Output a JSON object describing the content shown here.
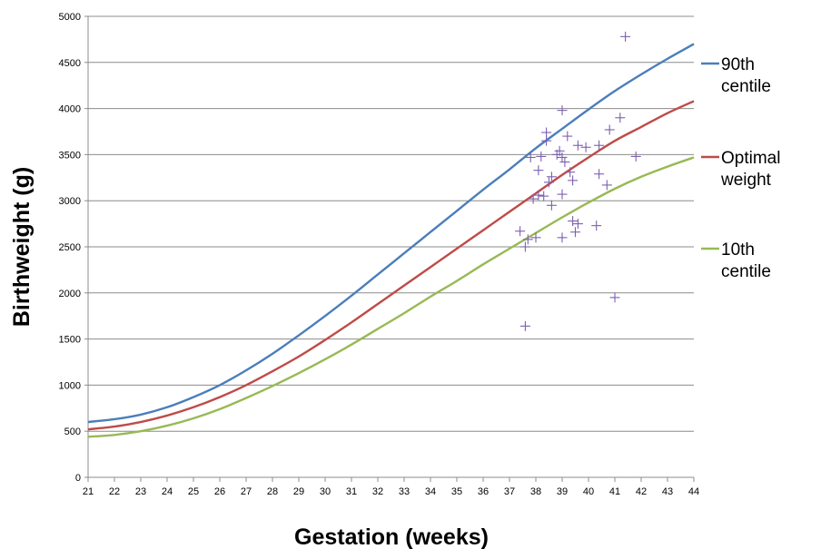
{
  "chart_data": {
    "type": "line",
    "title": "",
    "xlabel": "Gestation (weeks)",
    "ylabel": "Birthweight (g)",
    "xlim": [
      21,
      44
    ],
    "ylim": [
      0,
      5000
    ],
    "x_ticks": [
      "21",
      "22",
      "23",
      "24",
      "25",
      "26",
      "27",
      "28",
      "29",
      "30",
      "31",
      "32",
      "33",
      "34",
      "35",
      "36",
      "37",
      "38",
      "39",
      "40",
      "41",
      "42",
      "43",
      "44"
    ],
    "y_ticks": [
      "0",
      "500",
      "1000",
      "1500",
      "2000",
      "2500",
      "3000",
      "3500",
      "4000",
      "4500",
      "5000"
    ],
    "grid": "horizontal",
    "legend_position": "right",
    "series": [
      {
        "name": "90th centile",
        "color": "#4a7ebb",
        "x": [
          21,
          22,
          23,
          24,
          25,
          26,
          27,
          28,
          29,
          30,
          31,
          32,
          33,
          34,
          35,
          36,
          37,
          38,
          39,
          40,
          41,
          42,
          43,
          44
        ],
        "y": [
          600,
          630,
          680,
          760,
          870,
          1000,
          1160,
          1340,
          1540,
          1750,
          1970,
          2200,
          2430,
          2660,
          2890,
          3120,
          3340,
          3570,
          3780,
          3990,
          4190,
          4370,
          4540,
          4700
        ]
      },
      {
        "name": "Optimal weight",
        "color": "#be4b48",
        "x": [
          21,
          22,
          23,
          24,
          25,
          26,
          27,
          28,
          29,
          30,
          31,
          32,
          33,
          34,
          35,
          36,
          37,
          38,
          39,
          40,
          41,
          42,
          43,
          44
        ],
        "y": [
          520,
          550,
          600,
          670,
          760,
          870,
          1000,
          1150,
          1310,
          1490,
          1680,
          1880,
          2080,
          2280,
          2480,
          2680,
          2880,
          3080,
          3280,
          3470,
          3650,
          3800,
          3950,
          4080
        ]
      },
      {
        "name": "10th centile",
        "color": "#98b954",
        "x": [
          21,
          22,
          23,
          24,
          25,
          26,
          27,
          28,
          29,
          30,
          31,
          32,
          33,
          34,
          35,
          36,
          37,
          38,
          39,
          40,
          41,
          42,
          43,
          44
        ],
        "y": [
          440,
          460,
          500,
          560,
          640,
          740,
          860,
          990,
          1130,
          1280,
          1440,
          1610,
          1780,
          1960,
          2130,
          2310,
          2480,
          2650,
          2820,
          2980,
          3130,
          3260,
          3370,
          3470
        ]
      }
    ],
    "scatter": {
      "marker": "+",
      "color": "#7b5fb0",
      "points": [
        [
          37.4,
          2670
        ],
        [
          37.6,
          2500
        ],
        [
          37.6,
          1640
        ],
        [
          37.7,
          2580
        ],
        [
          37.8,
          3470
        ],
        [
          37.9,
          3020
        ],
        [
          38.0,
          2600
        ],
        [
          38.1,
          3060
        ],
        [
          38.1,
          3330
        ],
        [
          38.2,
          3480
        ],
        [
          38.3,
          3050
        ],
        [
          38.4,
          3740
        ],
        [
          38.4,
          3650
        ],
        [
          38.5,
          3200
        ],
        [
          38.6,
          2950
        ],
        [
          38.6,
          3260
        ],
        [
          38.8,
          3500
        ],
        [
          38.9,
          3540
        ],
        [
          39.0,
          3470
        ],
        [
          39.0,
          3980
        ],
        [
          39.0,
          3070
        ],
        [
          39.0,
          2600
        ],
        [
          39.1,
          3420
        ],
        [
          39.2,
          3700
        ],
        [
          39.3,
          3310
        ],
        [
          39.4,
          3220
        ],
        [
          39.4,
          2780
        ],
        [
          39.5,
          2660
        ],
        [
          39.6,
          3600
        ],
        [
          39.6,
          2750
        ],
        [
          39.9,
          3580
        ],
        [
          40.3,
          2730
        ],
        [
          40.4,
          3600
        ],
        [
          40.4,
          3290
        ],
        [
          40.7,
          3170
        ],
        [
          40.8,
          3770
        ],
        [
          41.0,
          1950
        ],
        [
          41.2,
          3900
        ],
        [
          41.4,
          4780
        ],
        [
          41.8,
          3480
        ]
      ]
    }
  }
}
